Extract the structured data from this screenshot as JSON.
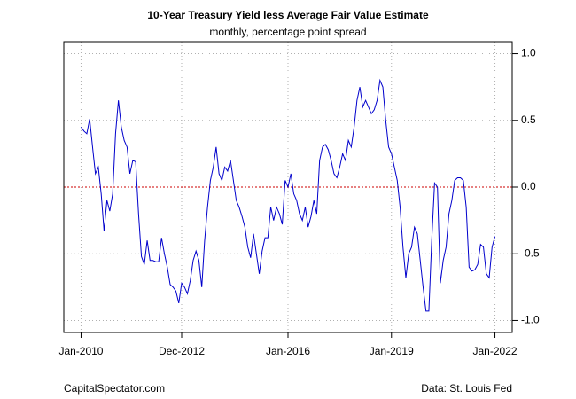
{
  "chart_data": {
    "type": "line",
    "title": "10-Year Treasury Yield less Average Fair Value Estimate",
    "subtitle": "monthly, percentage point spread",
    "source_left": "CapitalSpectator.com",
    "source_right": "Data: St. Louis Fed",
    "color": "#0000cc",
    "hline": {
      "value": 0,
      "color": "#cc0000"
    },
    "grid": true,
    "y_axis_side": "right",
    "xlim": [
      "2009-07",
      "2022-07"
    ],
    "ylim": [
      -1.09,
      1.09
    ],
    "yticks": [
      {
        "value": -1,
        "label": "-1.0"
      },
      -0.5,
      {
        "value": 0,
        "label": "0.0"
      },
      0.5,
      {
        "value": 1,
        "label": "1.0"
      }
    ],
    "xticks": [
      {
        "value": "2010-01",
        "label": "Jan-2010"
      },
      {
        "value": "2012-12",
        "label": "Dec-2012"
      },
      {
        "value": "2016-01",
        "label": "Jan-2016"
      },
      {
        "value": "2019-01",
        "label": "Jan-2019"
      },
      {
        "value": "2022-01",
        "label": "Jan-2022"
      }
    ],
    "x": [
      "2010-01",
      "2010-02",
      "2010-03",
      "2010-04",
      "2010-05",
      "2010-06",
      "2010-07",
      "2010-08",
      "2010-09",
      "2010-10",
      "2010-11",
      "2010-12",
      "2011-01",
      "2011-02",
      "2011-03",
      "2011-04",
      "2011-05",
      "2011-06",
      "2011-07",
      "2011-08",
      "2011-09",
      "2011-10",
      "2011-11",
      "2011-12",
      "2012-01",
      "2012-02",
      "2012-03",
      "2012-04",
      "2012-05",
      "2012-06",
      "2012-07",
      "2012-08",
      "2012-09",
      "2012-10",
      "2012-11",
      "2012-12",
      "2013-01",
      "2013-02",
      "2013-03",
      "2013-04",
      "2013-05",
      "2013-06",
      "2013-07",
      "2013-08",
      "2013-09",
      "2013-10",
      "2013-11",
      "2013-12",
      "2014-01",
      "2014-02",
      "2014-03",
      "2014-04",
      "2014-05",
      "2014-06",
      "2014-07",
      "2014-08",
      "2014-09",
      "2014-10",
      "2014-11",
      "2014-12",
      "2015-01",
      "2015-02",
      "2015-03",
      "2015-04",
      "2015-05",
      "2015-06",
      "2015-07",
      "2015-08",
      "2015-09",
      "2015-10",
      "2015-11",
      "2015-12",
      "2016-01",
      "2016-02",
      "2016-03",
      "2016-04",
      "2016-05",
      "2016-06",
      "2016-07",
      "2016-08",
      "2016-09",
      "2016-10",
      "2016-11",
      "2016-12",
      "2017-01",
      "2017-02",
      "2017-03",
      "2017-04",
      "2017-05",
      "2017-06",
      "2017-07",
      "2017-08",
      "2017-09",
      "2017-10",
      "2017-11",
      "2017-12",
      "2018-01",
      "2018-02",
      "2018-03",
      "2018-04",
      "2018-05",
      "2018-06",
      "2018-07",
      "2018-08",
      "2018-09",
      "2018-10",
      "2018-11",
      "2018-12",
      "2019-01",
      "2019-02",
      "2019-03",
      "2019-04",
      "2019-05",
      "2019-06",
      "2019-07",
      "2019-08",
      "2019-09",
      "2019-10",
      "2019-11",
      "2019-12",
      "2020-01",
      "2020-02",
      "2020-03",
      "2020-04",
      "2020-05",
      "2020-06",
      "2020-07",
      "2020-08",
      "2020-09",
      "2020-10",
      "2020-11",
      "2020-12",
      "2021-01",
      "2021-02",
      "2021-03",
      "2021-04",
      "2021-05",
      "2021-06",
      "2021-07",
      "2021-08",
      "2021-09",
      "2021-10",
      "2021-11",
      "2021-12",
      "2022-01"
    ],
    "values": [
      0.45,
      0.42,
      0.4,
      0.51,
      0.3,
      0.1,
      0.15,
      -0.05,
      -0.33,
      -0.1,
      -0.18,
      -0.05,
      0.4,
      0.65,
      0.45,
      0.35,
      0.3,
      0.1,
      0.2,
      0.19,
      -0.2,
      -0.52,
      -0.58,
      -0.4,
      -0.55,
      -0.55,
      -0.56,
      -0.56,
      -0.38,
      -0.5,
      -0.6,
      -0.73,
      -0.75,
      -0.78,
      -0.87,
      -0.72,
      -0.75,
      -0.8,
      -0.7,
      -0.55,
      -0.48,
      -0.55,
      -0.75,
      -0.4,
      -0.15,
      0.05,
      0.15,
      0.3,
      0.1,
      0.05,
      0.15,
      0.12,
      0.2,
      0.05,
      -0.1,
      -0.15,
      -0.22,
      -0.3,
      -0.45,
      -0.53,
      -0.35,
      -0.5,
      -0.65,
      -0.48,
      -0.38,
      -0.38,
      -0.15,
      -0.25,
      -0.15,
      -0.2,
      -0.28,
      0.05,
      0.0,
      0.1,
      -0.05,
      -0.1,
      -0.2,
      -0.25,
      -0.15,
      -0.3,
      -0.22,
      -0.1,
      -0.2,
      0.2,
      0.3,
      0.32,
      0.28,
      0.2,
      0.1,
      0.07,
      0.15,
      0.25,
      0.2,
      0.35,
      0.3,
      0.45,
      0.65,
      0.75,
      0.6,
      0.65,
      0.6,
      0.55,
      0.58,
      0.65,
      0.8,
      0.75,
      0.5,
      0.3,
      0.25,
      0.15,
      0.05,
      -0.15,
      -0.45,
      -0.68,
      -0.5,
      -0.45,
      -0.3,
      -0.35,
      -0.55,
      -0.75,
      -0.93,
      -0.93,
      -0.4,
      0.03,
      0.0,
      -0.72,
      -0.55,
      -0.45,
      -0.2,
      -0.1,
      0.05,
      0.07,
      0.07,
      0.05,
      -0.15,
      -0.6,
      -0.63,
      -0.62,
      -0.58,
      -0.43,
      -0.45,
      -0.65,
      -0.68,
      -0.45,
      -0.37
    ]
  }
}
